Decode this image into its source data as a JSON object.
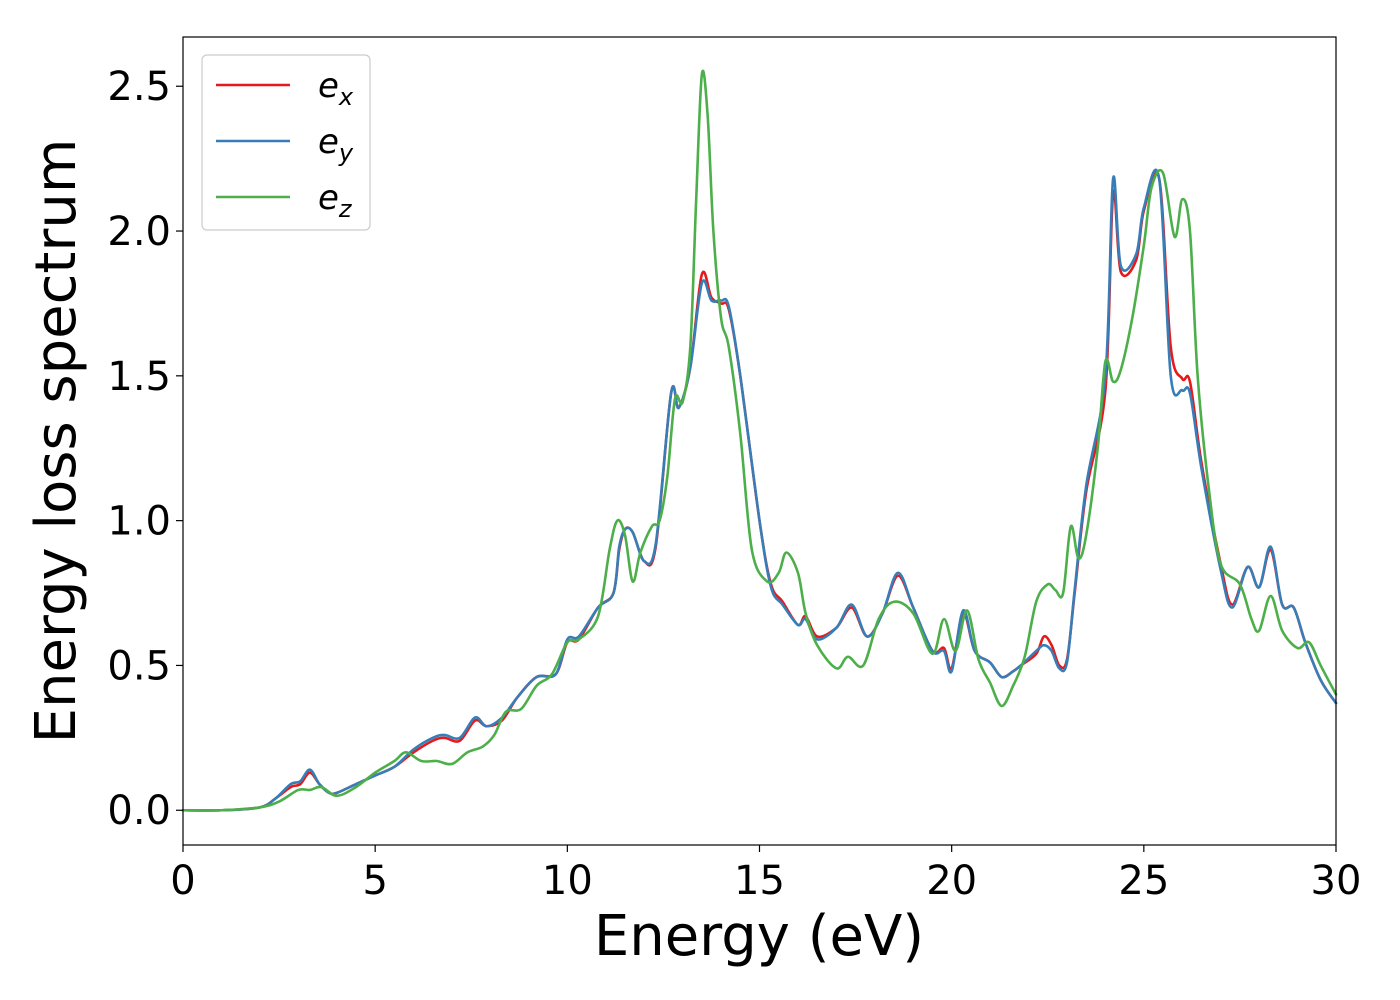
{
  "chart_data": {
    "type": "line",
    "title": "",
    "xlabel": "Energy (eV)",
    "ylabel": "Energy loss spectrum",
    "xlim": [
      0,
      30
    ],
    "ylim": [
      -0.12,
      2.67
    ],
    "xticks": [
      0,
      5,
      10,
      15,
      20,
      25,
      30
    ],
    "xtick_labels": [
      "0",
      "5",
      "10",
      "15",
      "20",
      "25",
      "30"
    ],
    "yticks": [
      0.0,
      0.5,
      1.0,
      1.5,
      2.0,
      2.5
    ],
    "ytick_labels": [
      "0.0",
      "0.5",
      "1.0",
      "1.5",
      "2.0",
      "2.5"
    ],
    "grid": false,
    "legend_position": "top-left",
    "series": [
      {
        "name": "e",
        "subscript": "x",
        "color": "#e41a1c",
        "x": [
          0,
          1,
          2,
          2.4,
          2.8,
          3.05,
          3.3,
          3.55,
          3.8,
          4.0,
          4.5,
          5.0,
          5.5,
          6.0,
          6.5,
          6.8,
          7.2,
          7.6,
          7.9,
          8.3,
          8.7,
          9.2,
          9.7,
          10.0,
          10.3,
          10.8,
          11.2,
          11.35,
          11.5,
          11.7,
          12.0,
          12.3,
          12.7,
          12.9,
          13.2,
          13.5,
          13.75,
          14.0,
          14.2,
          14.5,
          15.0,
          15.3,
          15.6,
          16.0,
          16.2,
          16.5,
          17.0,
          17.4,
          17.8,
          18.2,
          18.6,
          19.0,
          19.5,
          19.8,
          20.0,
          20.3,
          20.6,
          21.0,
          21.3,
          21.6,
          21.8,
          22.2,
          22.4,
          22.6,
          22.8,
          23.0,
          23.2,
          23.5,
          24.0,
          24.2,
          24.4,
          24.8,
          25.0,
          25.4,
          25.7,
          26.0,
          26.2,
          26.5,
          27.0,
          27.3,
          27.7,
          28.0,
          28.3,
          28.6,
          28.9,
          29.2,
          29.6,
          30.0
        ],
        "y": [
          0.0,
          0.0,
          0.01,
          0.04,
          0.08,
          0.09,
          0.13,
          0.09,
          0.06,
          0.06,
          0.09,
          0.12,
          0.15,
          0.2,
          0.24,
          0.25,
          0.24,
          0.31,
          0.29,
          0.31,
          0.39,
          0.46,
          0.47,
          0.58,
          0.59,
          0.7,
          0.75,
          0.9,
          0.97,
          0.96,
          0.86,
          0.91,
          1.44,
          1.39,
          1.53,
          1.85,
          1.77,
          1.75,
          1.73,
          1.5,
          1.0,
          0.78,
          0.72,
          0.64,
          0.67,
          0.6,
          0.63,
          0.7,
          0.6,
          0.68,
          0.81,
          0.7,
          0.55,
          0.56,
          0.49,
          0.68,
          0.55,
          0.51,
          0.46,
          0.48,
          0.5,
          0.54,
          0.6,
          0.57,
          0.5,
          0.52,
          0.75,
          1.1,
          1.45,
          2.13,
          1.86,
          1.9,
          2.07,
          2.18,
          1.6,
          1.49,
          1.48,
          1.2,
          0.85,
          0.71,
          0.84,
          0.77,
          0.9,
          0.71,
          0.7,
          0.58,
          0.45,
          0.37
        ]
      },
      {
        "name": "e",
        "subscript": "y",
        "color": "#377eb8",
        "x": [
          0,
          1,
          2,
          2.4,
          2.8,
          3.05,
          3.3,
          3.55,
          3.8,
          4.0,
          4.5,
          5.0,
          5.5,
          6.0,
          6.5,
          6.8,
          7.2,
          7.6,
          7.9,
          8.3,
          8.7,
          9.2,
          9.7,
          10.0,
          10.3,
          10.8,
          11.2,
          11.35,
          11.5,
          11.7,
          12.0,
          12.3,
          12.7,
          12.9,
          13.2,
          13.5,
          13.75,
          14.0,
          14.2,
          14.5,
          15.0,
          15.3,
          15.6,
          16.0,
          16.2,
          16.5,
          17.0,
          17.4,
          17.8,
          18.2,
          18.6,
          19.0,
          19.5,
          19.8,
          20.0,
          20.3,
          20.6,
          21.0,
          21.3,
          21.6,
          21.8,
          22.2,
          22.4,
          22.6,
          22.8,
          23.0,
          23.2,
          23.5,
          24.0,
          24.2,
          24.4,
          24.8,
          25.0,
          25.4,
          25.7,
          26.0,
          26.2,
          26.5,
          27.0,
          27.3,
          27.7,
          28.0,
          28.3,
          28.6,
          28.9,
          29.2,
          29.6,
          30.0
        ],
        "y": [
          0.0,
          0.0,
          0.01,
          0.04,
          0.09,
          0.1,
          0.14,
          0.09,
          0.06,
          0.06,
          0.09,
          0.12,
          0.15,
          0.21,
          0.25,
          0.26,
          0.25,
          0.32,
          0.29,
          0.32,
          0.39,
          0.46,
          0.47,
          0.59,
          0.6,
          0.7,
          0.75,
          0.91,
          0.97,
          0.96,
          0.86,
          0.92,
          1.44,
          1.39,
          1.53,
          1.82,
          1.76,
          1.76,
          1.74,
          1.5,
          1.0,
          0.77,
          0.71,
          0.64,
          0.66,
          0.59,
          0.63,
          0.71,
          0.6,
          0.68,
          0.82,
          0.7,
          0.55,
          0.55,
          0.48,
          0.69,
          0.55,
          0.51,
          0.46,
          0.48,
          0.5,
          0.55,
          0.57,
          0.55,
          0.49,
          0.51,
          0.76,
          1.12,
          1.5,
          2.18,
          1.88,
          1.92,
          2.08,
          2.18,
          1.5,
          1.45,
          1.44,
          1.18,
          0.83,
          0.7,
          0.84,
          0.77,
          0.91,
          0.71,
          0.7,
          0.58,
          0.45,
          0.37
        ]
      },
      {
        "name": "e",
        "subscript": "z",
        "color": "#4daf4a",
        "x": [
          0,
          1,
          2,
          2.5,
          3.0,
          3.3,
          3.6,
          4.0,
          4.5,
          5.0,
          5.5,
          5.8,
          6.2,
          6.6,
          7.0,
          7.4,
          7.8,
          8.1,
          8.4,
          8.8,
          9.2,
          9.6,
          10.0,
          10.3,
          10.8,
          11.1,
          11.3,
          11.5,
          11.7,
          11.9,
          12.2,
          12.4,
          12.6,
          12.8,
          13.0,
          13.2,
          13.35,
          13.5,
          13.65,
          13.8,
          14.0,
          14.2,
          14.5,
          14.8,
          15.2,
          15.5,
          15.7,
          16.0,
          16.2,
          16.5,
          17.0,
          17.3,
          17.7,
          18.1,
          18.5,
          19.0,
          19.5,
          19.8,
          20.1,
          20.4,
          20.7,
          21.0,
          21.3,
          21.6,
          21.9,
          22.2,
          22.5,
          22.7,
          22.9,
          23.1,
          23.3,
          23.5,
          23.8,
          24.0,
          24.2,
          24.4,
          24.7,
          25.0,
          25.2,
          25.5,
          25.8,
          26.0,
          26.2,
          26.4,
          26.7,
          27.0,
          27.5,
          27.8,
          28.0,
          28.3,
          28.6,
          29.0,
          29.3,
          29.6,
          30.0
        ],
        "y": [
          0.0,
          0.0,
          0.01,
          0.03,
          0.07,
          0.07,
          0.08,
          0.05,
          0.08,
          0.13,
          0.17,
          0.2,
          0.17,
          0.17,
          0.16,
          0.2,
          0.22,
          0.26,
          0.34,
          0.35,
          0.43,
          0.47,
          0.58,
          0.59,
          0.67,
          0.9,
          1.0,
          0.95,
          0.79,
          0.89,
          0.98,
          1.0,
          1.15,
          1.42,
          1.41,
          1.6,
          2.1,
          2.54,
          2.4,
          2.0,
          1.7,
          1.6,
          1.3,
          0.9,
          0.79,
          0.82,
          0.89,
          0.82,
          0.68,
          0.57,
          0.49,
          0.53,
          0.5,
          0.66,
          0.72,
          0.68,
          0.54,
          0.66,
          0.55,
          0.69,
          0.52,
          0.44,
          0.36,
          0.43,
          0.53,
          0.72,
          0.78,
          0.76,
          0.75,
          0.98,
          0.87,
          0.95,
          1.25,
          1.55,
          1.48,
          1.52,
          1.7,
          1.95,
          2.15,
          2.2,
          1.98,
          2.11,
          2.0,
          1.5,
          1.1,
          0.85,
          0.78,
          0.66,
          0.62,
          0.74,
          0.62,
          0.56,
          0.58,
          0.5,
          0.4
        ]
      }
    ]
  }
}
